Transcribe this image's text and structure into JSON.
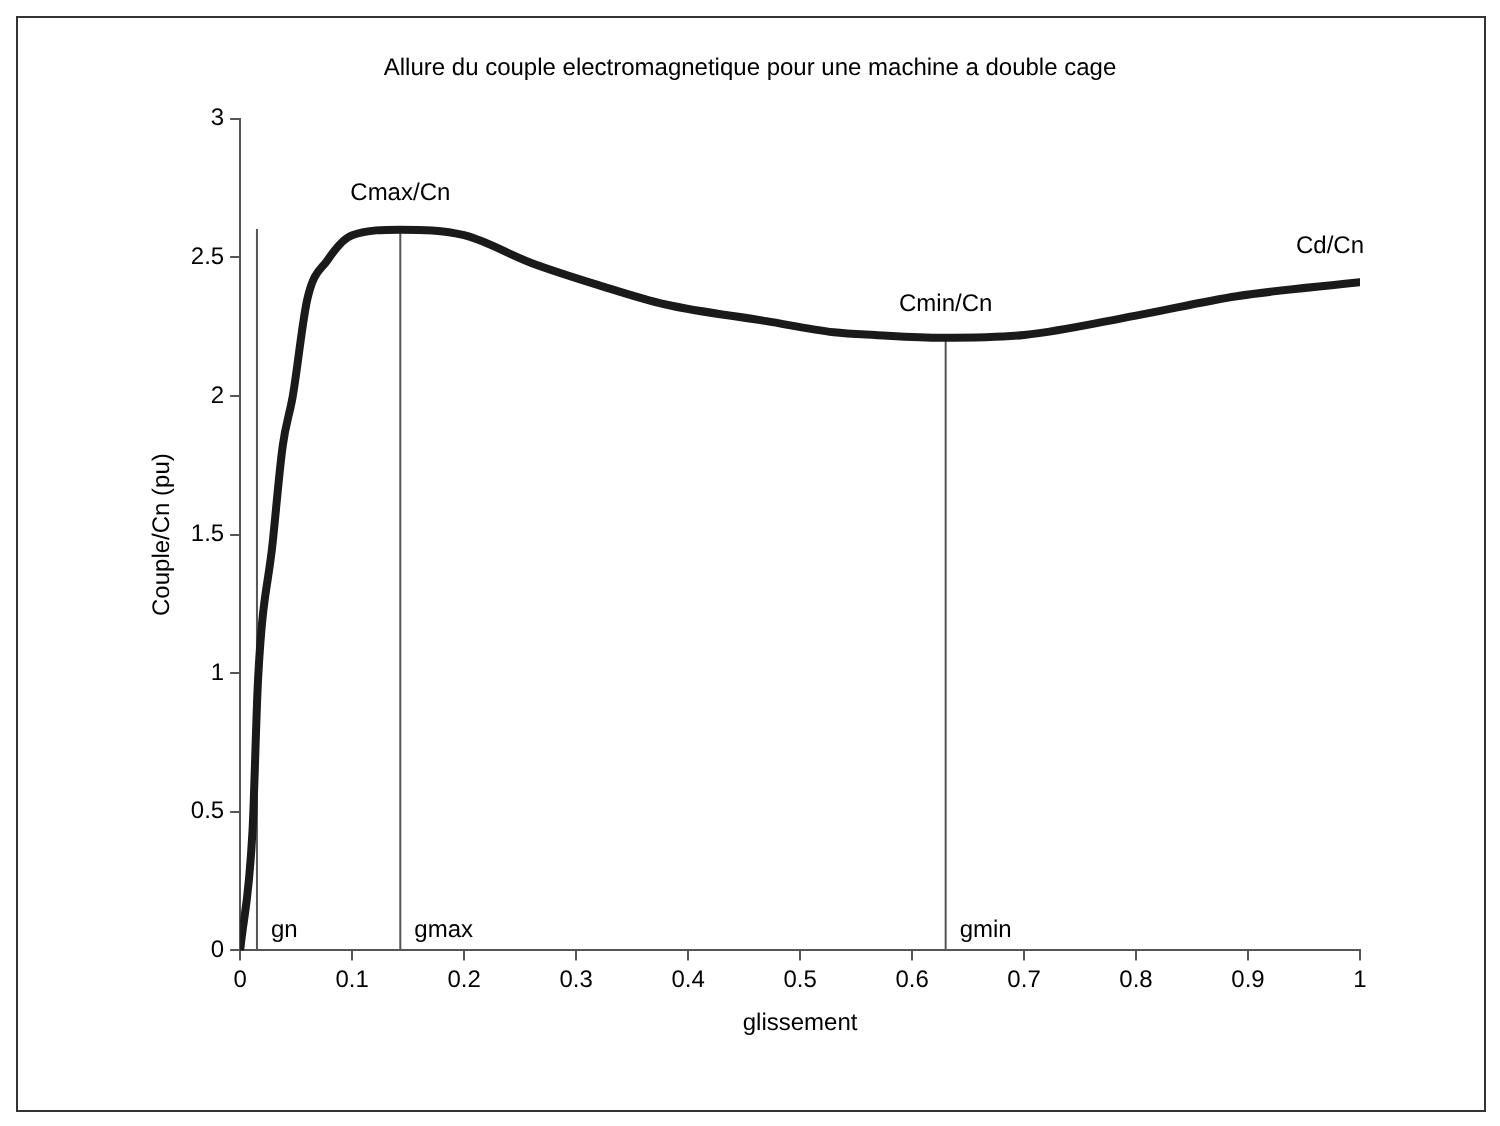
{
  "chart_data": {
    "type": "line",
    "title": "Allure du couple electromagnetique pour une machine a double cage",
    "xlabel": "glissement",
    "ylabel": "Couple/Cn (pu)",
    "xlim": [
      0,
      1
    ],
    "xticks": [
      0,
      0.1,
      0.2,
      0.3,
      0.4,
      0.5,
      0.6,
      0.7,
      0.8,
      0.9,
      1
    ],
    "ylim": [
      0,
      3
    ],
    "yticks": [
      0,
      0.5,
      1,
      1.5,
      2,
      2.5,
      3
    ],
    "grid": false,
    "legend": false,
    "marker": "none",
    "line_style": "solid",
    "series": [
      {
        "color": "#1a1a1a",
        "x": [
          0,
          0.011,
          0.016,
          0.029,
          0.038,
          0.047,
          0.06,
          0.078,
          0.1,
          0.143,
          0.2,
          0.26,
          0.32,
          0.38,
          0.47,
          0.53,
          0.567,
          0.627,
          0.7,
          0.8,
          0.89,
          1
        ],
        "values": [
          0,
          0.43,
          0.98,
          1.47,
          1.82,
          2.0,
          2.35,
          2.49,
          2.58,
          2.6,
          2.58,
          2.48,
          2.4,
          2.33,
          2.27,
          2.23,
          2.22,
          2.21,
          2.22,
          2.29,
          2.36,
          2.41
        ]
      },
      {
        "color": "#555555",
        "x": [
          0.015,
          0.015
        ],
        "values": [
          0,
          2.6
        ]
      },
      {
        "color": "#555555",
        "x": [
          0.143,
          0.143
        ],
        "values": [
          0,
          2.6
        ]
      },
      {
        "color": "#555555",
        "x": [
          0.63,
          0.63
        ],
        "values": [
          0,
          2.2
        ]
      }
    ],
    "annotations": [
      {
        "text": "Cmax/Cn",
        "x": 0.143,
        "y": 2.6
      },
      {
        "text": "Cmin/Cn",
        "x": 0.63,
        "y": 2.2
      },
      {
        "text": "Cd/Cn",
        "x": 1,
        "y": 2.41
      },
      {
        "text": "gn",
        "x": 0.015,
        "y": 0
      },
      {
        "text": "gmax",
        "x": 0.143,
        "y": 0
      },
      {
        "text": "gmin",
        "x": 0.63,
        "y": 0
      }
    ]
  }
}
